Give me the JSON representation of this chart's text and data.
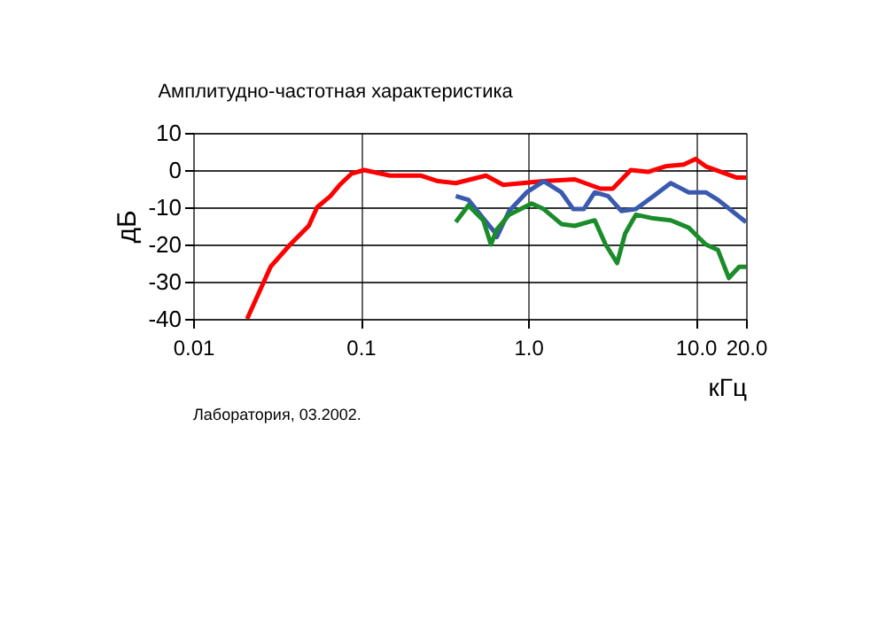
{
  "chart_data": {
    "type": "line",
    "title": "Амплитудно-частотная характеристика",
    "xlabel": "кГц",
    "ylabel": "дБ",
    "log": "x",
    "xlim": [
      0.01,
      20
    ],
    "xticks": [
      0.01,
      0.1,
      {
        "value": 1,
        "label": "1.0"
      },
      {
        "value": 10,
        "label": "10.0"
      },
      {
        "value": 20,
        "label": "20.0"
      }
    ],
    "ylim": [
      -40,
      10
    ],
    "yticks": [
      -40,
      -30,
      -20,
      -10,
      0,
      10
    ],
    "grid": true,
    "line_style": "solid",
    "marker": "none",
    "annotations": [
      "Лаборатория, 03.2002."
    ],
    "series": [
      {
        "color": "#ff0000",
        "x": [
          0.021,
          0.029,
          0.038,
          0.049,
          0.055,
          0.066,
          0.075,
          0.088,
          0.105,
          0.15,
          0.23,
          0.29,
          0.37,
          0.56,
          0.71,
          1.24,
          1.9,
          2.7,
          3.2,
          4.1,
          5.2,
          6.6,
          8.5,
          10,
          11.5,
          17.5,
          20
        ],
        "values": [
          -40,
          -26,
          -20,
          -15,
          -10,
          -7,
          -4,
          -1,
          0,
          -1.5,
          -1.5,
          -3,
          -3.5,
          -1.5,
          -4,
          -3,
          -2.5,
          -5,
          -5,
          0,
          -0.5,
          1,
          1.5,
          3,
          1,
          -2,
          -2
        ]
      },
      {
        "color": "#3a5ab0",
        "x": [
          0.37,
          0.44,
          0.54,
          0.64,
          0.65,
          0.77,
          0.98,
          1.24,
          1.58,
          1.86,
          2.15,
          2.5,
          3.0,
          3.6,
          4.4,
          5.6,
          7.1,
          9.1,
          11.5,
          13.6,
          20
        ],
        "values": [
          -7,
          -8,
          -13,
          -17,
          -18,
          -11,
          -6,
          -3,
          -6,
          -10.5,
          -10.5,
          -6,
          -7,
          -11,
          -10.5,
          -7,
          -3.5,
          -6,
          -6,
          -8,
          -14
        ]
      },
      {
        "color": "#1a8c2a",
        "x": [
          0.37,
          0.44,
          0.54,
          0.6,
          0.65,
          0.77,
          1.05,
          1.24,
          1.58,
          1.9,
          2.5,
          2.9,
          3.4,
          3.8,
          4.4,
          5.6,
          7.1,
          9.1,
          11.5,
          13.6,
          15.8,
          18.2,
          20
        ],
        "values": [
          -14,
          -9.5,
          -13.5,
          -20,
          -16,
          -12,
          -9,
          -10.5,
          -14.5,
          -15,
          -13.5,
          -20,
          -25,
          -17,
          -12,
          -13,
          -13.5,
          -15.5,
          -20,
          -21.5,
          -29,
          -26,
          -26
        ]
      }
    ]
  }
}
